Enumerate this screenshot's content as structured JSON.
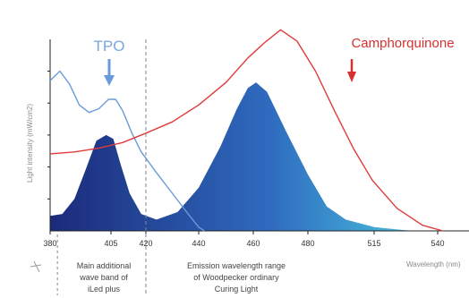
{
  "chart_data": {
    "type": "line",
    "title": "",
    "xlabel": "Wavelength (nm)",
    "ylabel": "Light intensity (mW/cm2)",
    "xlim": [
      380,
      545
    ],
    "ylim": [
      0,
      1
    ],
    "x_ticks": [
      380,
      405,
      420,
      440,
      460,
      480,
      515,
      540
    ],
    "grid": false,
    "legend": "none",
    "series": [
      {
        "name": "TPO",
        "kind": "line",
        "color": "#6a9bd8",
        "points": [
          [
            380,
            0.8
          ],
          [
            384,
            0.85
          ],
          [
            388,
            0.78
          ],
          [
            392,
            0.67
          ],
          [
            396,
            0.63
          ],
          [
            400,
            0.65
          ],
          [
            404,
            0.7
          ],
          [
            407,
            0.7
          ],
          [
            410,
            0.64
          ],
          [
            414,
            0.52
          ],
          [
            418,
            0.42
          ],
          [
            424,
            0.31
          ],
          [
            430,
            0.2
          ],
          [
            436,
            0.09
          ],
          [
            440,
            0.02
          ],
          [
            442,
            0.0
          ]
        ]
      },
      {
        "name": "Camphorquinone",
        "kind": "line",
        "color": "#e03a3a",
        "points": [
          [
            380,
            0.41
          ],
          [
            390,
            0.42
          ],
          [
            400,
            0.44
          ],
          [
            410,
            0.47
          ],
          [
            420,
            0.52
          ],
          [
            430,
            0.58
          ],
          [
            440,
            0.67
          ],
          [
            450,
            0.79
          ],
          [
            458,
            0.92
          ],
          [
            464,
            1.0
          ],
          [
            470,
            1.07
          ],
          [
            476,
            1.01
          ],
          [
            484,
            0.85
          ],
          [
            494,
            0.64
          ],
          [
            504,
            0.44
          ],
          [
            514,
            0.27
          ],
          [
            524,
            0.12
          ],
          [
            534,
            0.03
          ],
          [
            542,
            0.0
          ]
        ]
      },
      {
        "name": "",
        "kind": "area",
        "points": [
          [
            380,
            0.08
          ],
          [
            385,
            0.09
          ],
          [
            390,
            0.17
          ],
          [
            395,
            0.34
          ],
          [
            399,
            0.48
          ],
          [
            403,
            0.51
          ],
          [
            406,
            0.49
          ],
          [
            409,
            0.36
          ],
          [
            413,
            0.2
          ],
          [
            418,
            0.09
          ],
          [
            424,
            0.06
          ],
          [
            432,
            0.1
          ],
          [
            440,
            0.23
          ],
          [
            448,
            0.45
          ],
          [
            454,
            0.65
          ],
          [
            458,
            0.76
          ],
          [
            461,
            0.79
          ],
          [
            465,
            0.74
          ],
          [
            472,
            0.53
          ],
          [
            480,
            0.3
          ],
          [
            490,
            0.13
          ],
          [
            500,
            0.06
          ],
          [
            515,
            0.02
          ],
          [
            530,
            0.0
          ],
          [
            545,
            0.0
          ]
        ]
      }
    ],
    "labels": {
      "tpo": "TPO",
      "camphorquinone": "Camphorquinone",
      "note_left": [
        "Main additional",
        "wave band of",
        "iLed plus"
      ],
      "note_right": [
        "Emission wavelength range",
        "of Woodpecker ordinary",
        "Curing Light"
      ]
    },
    "colors": {
      "tpo": "#6a9bd8",
      "camphorquinone": "#e03a3a",
      "arrow_tpo": "#6a9bd8",
      "arrow_cq": "#d63030",
      "area_start": "#1b2a7a",
      "area_mid": "#2f6bbf",
      "area_end": "#4fd4e4"
    }
  }
}
